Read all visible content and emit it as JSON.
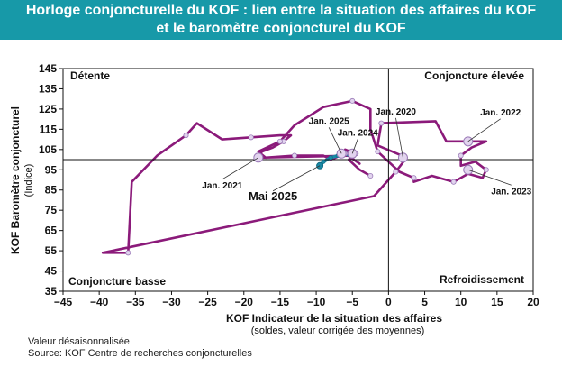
{
  "header": {
    "title_line1": "Horloge conjoncturelle du KOF : lien entre la situation des affaires du KOF",
    "title_line2": "et le baromètre conjoncturel du KOF",
    "background": "#1799a8"
  },
  "footnotes": {
    "line1": "Valeur désaisonnalisée",
    "line2": "Source: KOF Centre de recherches conjoncturelles"
  },
  "chart_data": {
    "type": "line",
    "xlabel": "KOF Indicateur de la situation des affaires",
    "xlabel_sub": "(soldes, valeur corrigée des moyennes)",
    "ylabel": "KOF Baromètre conjoncturel",
    "ylabel_sub": "(Indice)",
    "xlim": [
      -45,
      20
    ],
    "ylim": [
      35,
      145
    ],
    "x_ticks": [
      -45,
      -40,
      -35,
      -30,
      -25,
      -20,
      -15,
      -10,
      -5,
      0,
      5,
      10,
      15,
      20
    ],
    "y_ticks": [
      35,
      45,
      55,
      65,
      75,
      85,
      95,
      105,
      115,
      125,
      135,
      145
    ],
    "reference_lines": {
      "x": 0,
      "y": 100
    },
    "grid": false,
    "quadrants": {
      "top_left": "Détente",
      "top_right": "Conjoncture élevée",
      "bottom_left": "Conjoncture basse",
      "bottom_right": "Refroidissement"
    },
    "colors": {
      "history": "#8b1a7a",
      "marker_fill": "#e2d4ee",
      "marker_edge": "#9b7bb8",
      "recent": "#1a8aa6",
      "axes": "#111111"
    },
    "series": [
      {
        "color": "#8b1a7a",
        "points": [
          [
            -2.5,
            92
          ],
          [
            -4,
            95
          ],
          [
            -5.5,
            100
          ],
          [
            -4.5,
            103
          ],
          [
            -6,
            105
          ],
          [
            -5,
            102
          ],
          [
            -18,
            101
          ],
          [
            -17.5,
            104
          ],
          [
            -16,
            106
          ],
          [
            -14.5,
            109
          ],
          [
            -13.5,
            112
          ],
          [
            -15,
            112
          ],
          [
            -19,
            111
          ],
          [
            -23,
            110
          ],
          [
            -26.5,
            118
          ],
          [
            -28,
            112
          ],
          [
            -32,
            102
          ],
          [
            -35.5,
            89
          ],
          [
            -36,
            54
          ],
          [
            -39.5,
            54
          ],
          [
            -2,
            82
          ],
          [
            1,
            94
          ],
          [
            2.5,
            101
          ],
          [
            -1.5,
            107
          ],
          [
            -1,
            118
          ],
          [
            6.5,
            119
          ],
          [
            8,
            109
          ],
          [
            11,
            109
          ],
          [
            13.5,
            109
          ],
          [
            11.5,
            106
          ],
          [
            10,
            102
          ],
          [
            10,
            97
          ],
          [
            12,
            99
          ],
          [
            13.5,
            95
          ],
          [
            13,
            91
          ],
          [
            11,
            93
          ],
          [
            9,
            89
          ],
          [
            6,
            92
          ],
          [
            3.5,
            89
          ],
          [
            3.5,
            91
          ],
          [
            1.5,
            94
          ],
          [
            0,
            99
          ],
          [
            -1.5,
            104
          ],
          [
            -2.5,
            115
          ],
          [
            -2.5,
            125
          ],
          [
            -5,
            129
          ],
          [
            -9,
            126
          ],
          [
            -13,
            117
          ],
          [
            -15,
            109
          ],
          [
            -18,
            104
          ],
          [
            -17,
            101
          ],
          [
            -13,
            102
          ],
          [
            -9,
            102
          ],
          [
            -8,
            100
          ],
          [
            -6,
            103
          ],
          [
            -4,
            98
          ]
        ]
      },
      {
        "color": "#1a8aa6",
        "points": [
          [
            -9.5,
            97
          ],
          [
            -9,
            99
          ],
          [
            -8,
            101
          ],
          [
            -7,
            102
          ],
          [
            -6.5,
            103
          ],
          [
            -5,
            102
          ]
        ]
      }
    ],
    "highlighted_points": [
      {
        "label": "Jan. 2020",
        "x": 2,
        "y": 101
      },
      {
        "label": "Jan. 2021",
        "x": -18,
        "y": 101
      },
      {
        "label": "Jan. 2022",
        "x": 11,
        "y": 109
      },
      {
        "label": "Jan. 2023",
        "x": 11,
        "y": 95
      },
      {
        "label": "Jan. 2024",
        "x": -5,
        "y": 103
      },
      {
        "label": "Jan. 2025",
        "x": -6.5,
        "y": 103
      },
      {
        "label": "Mai 2025",
        "x": -9.5,
        "y": 97
      }
    ]
  }
}
